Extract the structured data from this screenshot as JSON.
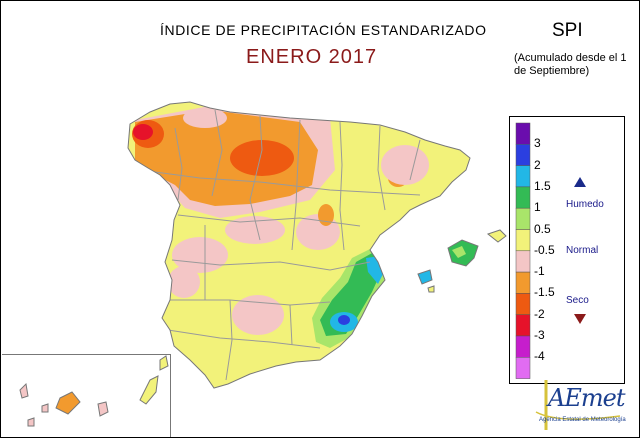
{
  "header": {
    "title": "ÍNDICE DE PRECIPITACIÓN ESTANDARIZADO",
    "subtitle": "ENERO 2017",
    "index": "SPI",
    "note": "(Acumulado desde el 1 de Septiembre)"
  },
  "legend": {
    "ticks": [
      "3",
      "2",
      "1.5",
      "1",
      "0.5",
      "-0.5",
      "-1",
      "-1.5",
      "-2",
      "-3",
      "-4"
    ],
    "bands": [
      {
        "color": "#6a0dad"
      },
      {
        "color": "#2b3fe0"
      },
      {
        "color": "#22b7e6"
      },
      {
        "color": "#33bb55"
      },
      {
        "color": "#a9e56a"
      },
      {
        "color": "#f2f27a"
      },
      {
        "color": "#f4c6c6"
      },
      {
        "color": "#f29a2e"
      },
      {
        "color": "#ee5a11"
      },
      {
        "color": "#e6122a"
      },
      {
        "color": "#c61ecc"
      },
      {
        "color": "#e16cf2"
      }
    ],
    "categories": {
      "wet": "Humedo",
      "normal": "Normal",
      "dry": "Seco"
    },
    "arrow_colors": {
      "wet": "#1a2a8a",
      "dry": "#8b1a1a"
    }
  },
  "logo": {
    "text": "AEmet",
    "caption": "Agencia Estatal de Meteorología"
  },
  "colors": {
    "normal": "#f2f27a",
    "pink": "#f4c6c6",
    "orange": "#f29a2e",
    "red_orange": "#ee5a11",
    "red": "#e6122a",
    "light_green": "#a9e56a",
    "green": "#33bb55",
    "cyan": "#22b7e6",
    "blue": "#2b3fe0",
    "border": "#9a9a9a"
  }
}
